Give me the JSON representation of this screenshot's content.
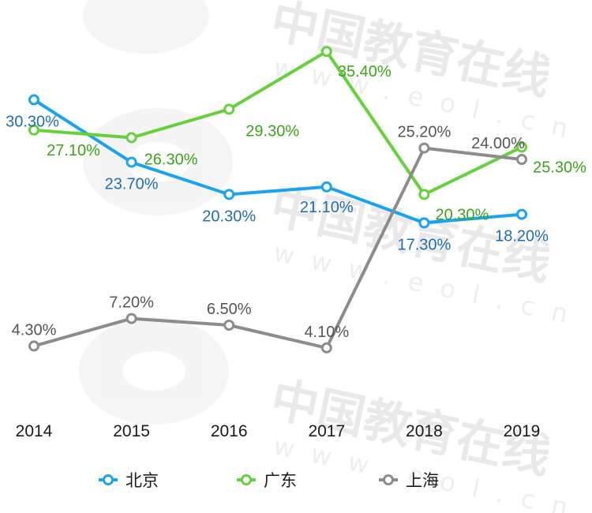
{
  "watermark": {
    "brand": "eol",
    "cn_text": "中国教育在线",
    "domain_text": "www.eol.cn"
  },
  "chart_data": {
    "type": "line",
    "x": [
      "2014",
      "2015",
      "2016",
      "2017",
      "2018",
      "2019"
    ],
    "ylim": [
      0,
      40
    ],
    "grid": false,
    "legend_position": "bottom",
    "series": [
      {
        "name": "北京",
        "color": "#1aa3f0",
        "label_color": "#1f6fb0",
        "values": [
          30.3,
          23.7,
          20.3,
          21.1,
          17.3,
          18.2
        ],
        "labels": [
          "30.30%",
          "23.70%",
          "20.30%",
          "21.10%",
          "17.30%",
          "18.20%"
        ]
      },
      {
        "name": "广东",
        "color": "#66d13a",
        "label_color": "#3aa51a",
        "values": [
          27.1,
          26.3,
          29.3,
          35.4,
          20.3,
          25.3
        ],
        "labels": [
          "27.10%",
          "26.30%",
          "29.30%",
          "35.40%",
          "20.30%",
          "25.30%"
        ]
      },
      {
        "name": "上海",
        "color": "#8c8c8c",
        "label_color": "#555555",
        "values": [
          4.3,
          7.2,
          6.5,
          4.1,
          25.2,
          24.0
        ],
        "labels": [
          "4.30%",
          "7.20%",
          "6.50%",
          "4.10%",
          "25.20%",
          "24.00%"
        ]
      }
    ]
  }
}
